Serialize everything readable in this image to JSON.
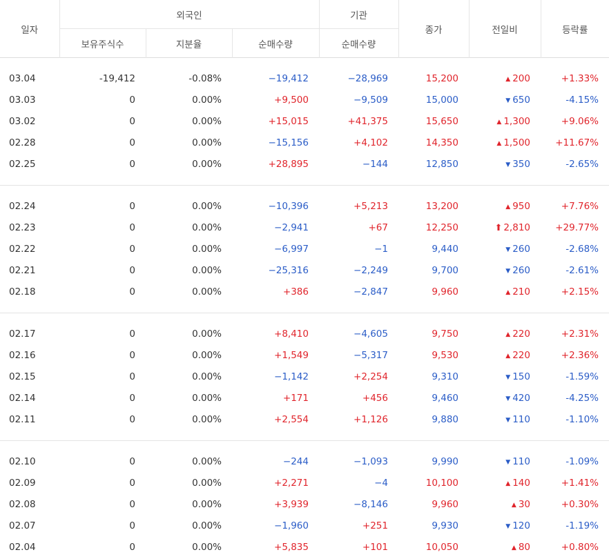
{
  "header": {
    "date": "일자",
    "foreign": "외국인",
    "institution": "기관",
    "close": "종가",
    "change": "전일비",
    "rate": "등락률",
    "holdings": "보유주식수",
    "ratio": "지분율",
    "foreign_net": "순매수량",
    "inst_net": "순매수량"
  },
  "colors": {
    "up": "#e0242b",
    "down": "#2a5cc7"
  },
  "groups": [
    [
      {
        "date": "03.04",
        "holdings": "-19,412",
        "ratio": "-0.08%",
        "fnet": "−19,412",
        "inet": "−28,969",
        "close": "15,200",
        "dir": "up",
        "chg": "200",
        "rate": "+1.33%"
      },
      {
        "date": "03.03",
        "holdings": "0",
        "ratio": "0.00%",
        "fnet": "+9,500",
        "inet": "−9,509",
        "close": "15,000",
        "dir": "down",
        "chg": "650",
        "rate": "-4.15%"
      },
      {
        "date": "03.02",
        "holdings": "0",
        "ratio": "0.00%",
        "fnet": "+15,015",
        "inet": "+41,375",
        "close": "15,650",
        "dir": "up",
        "chg": "1,300",
        "rate": "+9.06%"
      },
      {
        "date": "02.28",
        "holdings": "0",
        "ratio": "0.00%",
        "fnet": "−15,156",
        "inet": "+4,102",
        "close": "14,350",
        "dir": "up",
        "chg": "1,500",
        "rate": "+11.67%"
      },
      {
        "date": "02.25",
        "holdings": "0",
        "ratio": "0.00%",
        "fnet": "+28,895",
        "inet": "−144",
        "close": "12,850",
        "dir": "down",
        "chg": "350",
        "rate": "-2.65%"
      }
    ],
    [
      {
        "date": "02.24",
        "holdings": "0",
        "ratio": "0.00%",
        "fnet": "−10,396",
        "inet": "+5,213",
        "close": "13,200",
        "dir": "up",
        "chg": "950",
        "rate": "+7.76%"
      },
      {
        "date": "02.23",
        "holdings": "0",
        "ratio": "0.00%",
        "fnet": "−2,941",
        "inet": "+67",
        "close": "12,250",
        "dir": "limitup",
        "chg": "2,810",
        "rate": "+29.77%"
      },
      {
        "date": "02.22",
        "holdings": "0",
        "ratio": "0.00%",
        "fnet": "−6,997",
        "inet": "−1",
        "close": "9,440",
        "dir": "down",
        "chg": "260",
        "rate": "-2.68%"
      },
      {
        "date": "02.21",
        "holdings": "0",
        "ratio": "0.00%",
        "fnet": "−25,316",
        "inet": "−2,249",
        "close": "9,700",
        "dir": "down",
        "chg": "260",
        "rate": "-2.61%"
      },
      {
        "date": "02.18",
        "holdings": "0",
        "ratio": "0.00%",
        "fnet": "+386",
        "inet": "−2,847",
        "close": "9,960",
        "dir": "up",
        "chg": "210",
        "rate": "+2.15%"
      }
    ],
    [
      {
        "date": "02.17",
        "holdings": "0",
        "ratio": "0.00%",
        "fnet": "+8,410",
        "inet": "−4,605",
        "close": "9,750",
        "dir": "up",
        "chg": "220",
        "rate": "+2.31%"
      },
      {
        "date": "02.16",
        "holdings": "0",
        "ratio": "0.00%",
        "fnet": "+1,549",
        "inet": "−5,317",
        "close": "9,530",
        "dir": "up",
        "chg": "220",
        "rate": "+2.36%"
      },
      {
        "date": "02.15",
        "holdings": "0",
        "ratio": "0.00%",
        "fnet": "−1,142",
        "inet": "+2,254",
        "close": "9,310",
        "dir": "down",
        "chg": "150",
        "rate": "-1.59%"
      },
      {
        "date": "02.14",
        "holdings": "0",
        "ratio": "0.00%",
        "fnet": "+171",
        "inet": "+456",
        "close": "9,460",
        "dir": "down",
        "chg": "420",
        "rate": "-4.25%"
      },
      {
        "date": "02.11",
        "holdings": "0",
        "ratio": "0.00%",
        "fnet": "+2,554",
        "inet": "+1,126",
        "close": "9,880",
        "dir": "down",
        "chg": "110",
        "rate": "-1.10%"
      }
    ],
    [
      {
        "date": "02.10",
        "holdings": "0",
        "ratio": "0.00%",
        "fnet": "−244",
        "inet": "−1,093",
        "close": "9,990",
        "dir": "down",
        "chg": "110",
        "rate": "-1.09%"
      },
      {
        "date": "02.09",
        "holdings": "0",
        "ratio": "0.00%",
        "fnet": "+2,271",
        "inet": "−4",
        "close": "10,100",
        "dir": "up",
        "chg": "140",
        "rate": "+1.41%"
      },
      {
        "date": "02.08",
        "holdings": "0",
        "ratio": "0.00%",
        "fnet": "+3,939",
        "inet": "−8,146",
        "close": "9,960",
        "dir": "up",
        "chg": "30",
        "rate": "+0.30%"
      },
      {
        "date": "02.07",
        "holdings": "0",
        "ratio": "0.00%",
        "fnet": "−1,960",
        "inet": "+251",
        "close": "9,930",
        "dir": "down",
        "chg": "120",
        "rate": "-1.19%"
      },
      {
        "date": "02.04",
        "holdings": "0",
        "ratio": "0.00%",
        "fnet": "+5,835",
        "inet": "+101",
        "close": "10,050",
        "dir": "up",
        "chg": "80",
        "rate": "+0.80%"
      }
    ]
  ]
}
